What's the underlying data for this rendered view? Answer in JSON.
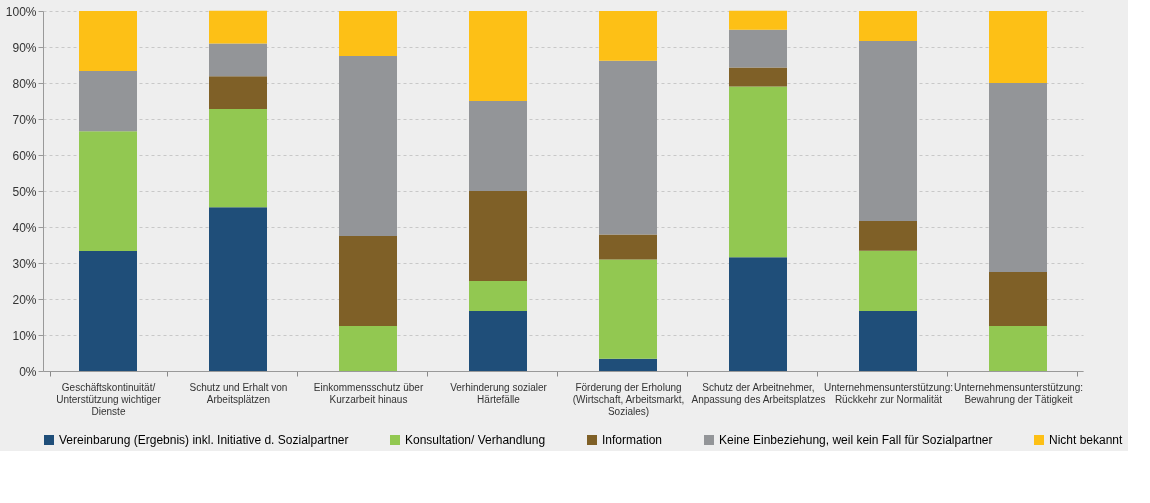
{
  "chart_data": {
    "type": "bar",
    "stacked": true,
    "categories": [
      "Geschäftskontinuität/\nUnterstützung wichtiger\nDienste",
      "Schutz und Erhalt von\nArbeitsplätzen",
      "Einkommensschutz über\nKurzarbeit hinaus",
      "Verhinderung sozialer\nHärtefälle",
      "Förderung der Erholung\n(Wirtschaft, Arbeitsmarkt,\nSoziales)",
      "Schutz der Arbeitnehmer,\nAnpassung des Arbeitsplatzes",
      "Unternehmensunterstützung:\nRückkehr zur Normalität",
      "Unternehmensunterstützung:\nBewahrung der Tätigkeit"
    ],
    "series": [
      {
        "name": "Vereinbarung (Ergebnis) inkl. Initiative d. Sozialpartner",
        "color": "#1f4e79",
        "values": [
          33.3,
          45.5,
          0,
          16.7,
          3.4,
          31.6,
          16.7,
          0
        ]
      },
      {
        "name": "Konsultation/ Verhandlung",
        "color": "#92c851",
        "values": [
          33.3,
          27.3,
          12.5,
          8.3,
          27.6,
          47.4,
          16.7,
          12.5
        ]
      },
      {
        "name": "Information",
        "color": "#7f6027",
        "values": [
          0,
          9.1,
          25,
          25,
          6.9,
          5.3,
          8.3,
          15
        ]
      },
      {
        "name": "Keine Einbeziehung, weil kein Fall für Sozialpartner",
        "color": "#939598",
        "values": [
          16.7,
          9.1,
          50,
          25,
          48.3,
          10.5,
          50,
          52.5
        ]
      },
      {
        "name": "Nicht bekannt",
        "color": "#fdc016",
        "values": [
          16.7,
          9.1,
          12.5,
          25,
          13.8,
          5.3,
          8.3,
          20
        ]
      }
    ],
    "ylim": [
      0,
      100
    ],
    "yticks": [
      {
        "value": 0,
        "label": "0%"
      },
      {
        "value": 10,
        "label": "10%"
      },
      {
        "value": 20,
        "label": "20%"
      },
      {
        "value": 30,
        "label": "30%"
      },
      {
        "value": 40,
        "label": "40%"
      },
      {
        "value": 50,
        "label": "50%"
      },
      {
        "value": 60,
        "label": "60%"
      },
      {
        "value": 70,
        "label": "70%"
      },
      {
        "value": 80,
        "label": "80%"
      },
      {
        "value": 90,
        "label": "90%"
      },
      {
        "value": 100,
        "label": "100%"
      }
    ],
    "grid": "y",
    "legend": "bottom"
  }
}
